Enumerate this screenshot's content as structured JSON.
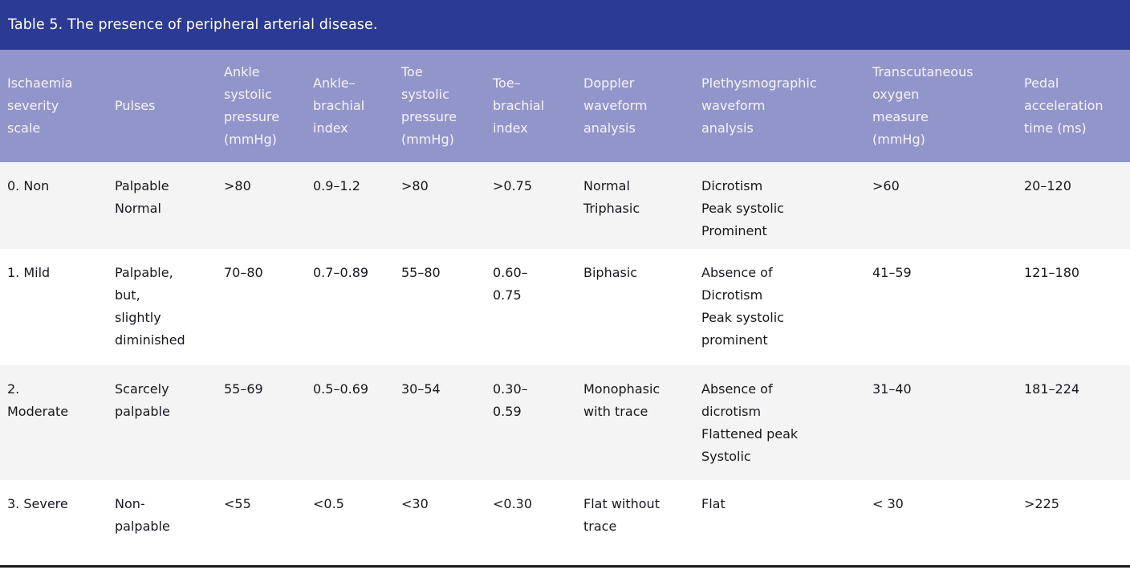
{
  "colors": {
    "title_bg": "#2b3a92",
    "header_bg": "#9295c9",
    "stripe_bg": "#f4f4f4",
    "header_text": "#f6f4f9",
    "body_text": "#17171f",
    "border_dark": "#1a1a1a",
    "title_text": "#ffffff"
  },
  "table": {
    "title": "Table 5. The presence of peripheral arterial disease.",
    "columns": [
      {
        "name": "ischaemia-severity-scale",
        "label": "Ischaemia\nseverity\nscale"
      },
      {
        "name": "pulses",
        "label": "Pulses"
      },
      {
        "name": "ankle-systolic-pressure",
        "label": "Ankle\nsystolic\npressure\n(mmHg)"
      },
      {
        "name": "ankle-brachial-index",
        "label": "Ankle–\nbrachial\nindex"
      },
      {
        "name": "toe-systolic-pressure",
        "label": "Toe\nsystolic\npressure\n(mmHg)"
      },
      {
        "name": "toe-brachial-index",
        "label": "Toe–\nbrachial\nindex"
      },
      {
        "name": "doppler-waveform-analysis",
        "label": "Doppler\nwaveform\nanalysis"
      },
      {
        "name": "plethysmographic-waveform-analysis",
        "label": "Plethysmographic\nwaveform\nanalysis"
      },
      {
        "name": "transcutaneous-oxygen-measure",
        "label": "Transcutaneous\noxygen\nmeasure\n(mmHg)"
      },
      {
        "name": "pedal-acceleration-time",
        "label": "Pedal\nacceleration\ntime (ms)"
      }
    ],
    "rows": [
      [
        "0. Non",
        "Palpable\nNormal",
        ">80",
        "0.9–1.2",
        ">80",
        ">0.75",
        "Normal\nTriphasic",
        "Dicrotism\nPeak systolic\nProminent",
        ">60",
        "20–120"
      ],
      [
        "1. Mild",
        "Palpable,\nbut,\nslightly\ndiminished",
        "70–80",
        "0.7–0.89",
        "55–80",
        "0.60–\n0.75",
        "Biphasic",
        "Absence of\nDicrotism\nPeak systolic\nprominent",
        "41–59",
        "121–180"
      ],
      [
        "2.\nModerate",
        "Scarcely\npalpable",
        "55–69",
        "0.5–0.69",
        "30–54",
        "0.30–\n0.59",
        "Monophasic\nwith trace",
        "Absence of\ndicrotism\nFlattened peak\nSystolic",
        "31–40",
        "181–224"
      ],
      [
        "3. Severe",
        "Non-\npalpable",
        "<55",
        "<0.5",
        "<30",
        "<0.30",
        "Flat without\ntrace",
        "Flat",
        "< 30",
        ">225"
      ]
    ]
  }
}
